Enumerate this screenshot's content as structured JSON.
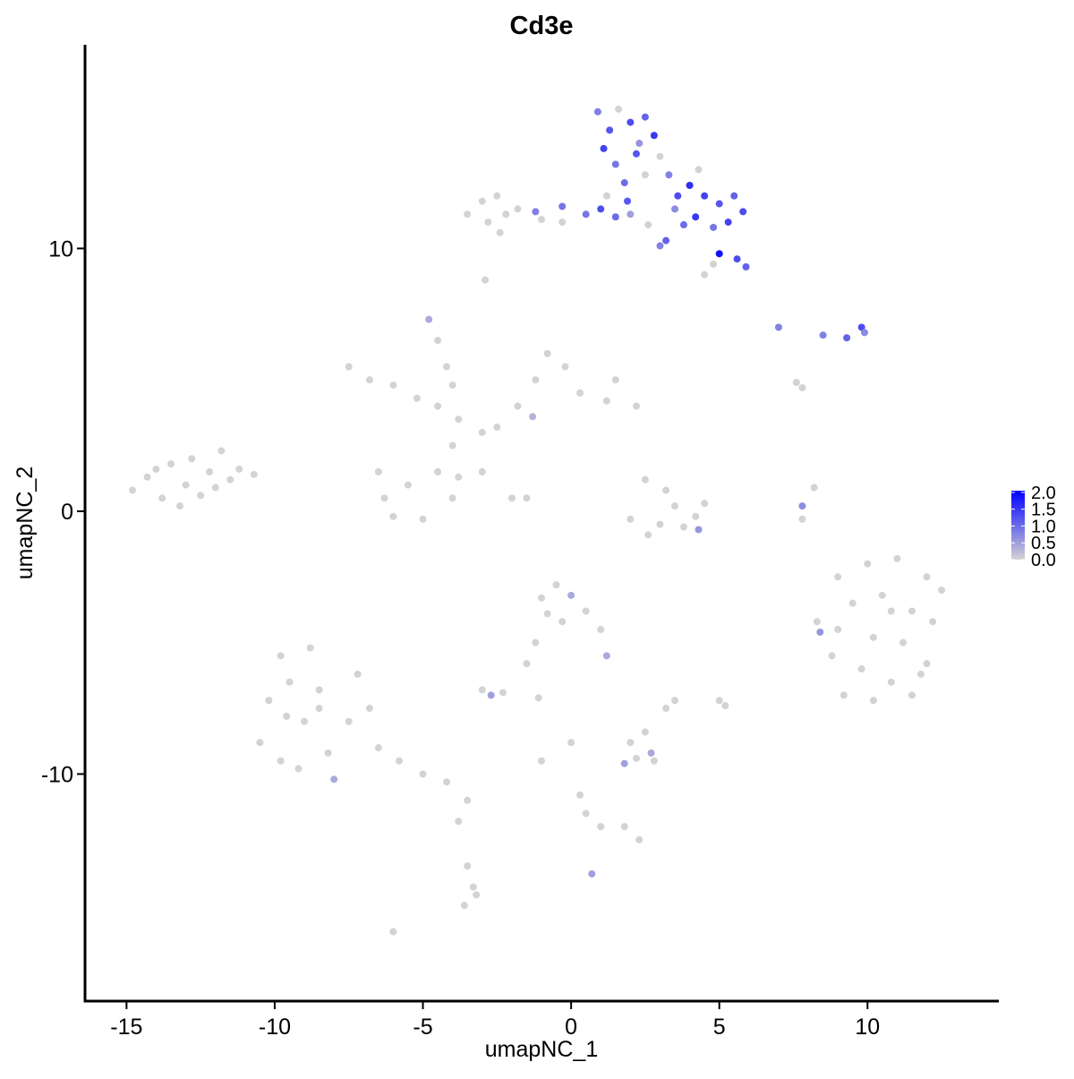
{
  "chart_data": {
    "type": "scatter",
    "title": "Cd3e",
    "x_label": "umapNC_1",
    "y_label": "umapNC_2",
    "xlim": [
      -16.4,
      14.4
    ],
    "ylim": [
      -18.64,
      17.75
    ],
    "xticks": [
      -15,
      -10,
      -5,
      0,
      5,
      10
    ],
    "yticks": [
      -10,
      0,
      10
    ],
    "color_low": "#d3d3d3",
    "color_high": "#0000ff",
    "clim": [
      0,
      2.05
    ],
    "cticks": [
      {
        "value": 0,
        "label": "0.0"
      },
      {
        "value": 0.5,
        "label": "0.5"
      },
      {
        "value": 1,
        "label": "1.0"
      },
      {
        "value": 1.5,
        "label": "1.5"
      },
      {
        "value": 2,
        "label": "2.0"
      }
    ],
    "x": [
      -14.8,
      -14.3,
      -13.8,
      -13.5,
      -13.0,
      -12.8,
      -12.5,
      -12.2,
      -11.8,
      -11.5,
      -11.2,
      -10.7,
      -13.2,
      -14.0,
      -12.0,
      -9.8,
      -9.5,
      -10.2,
      -8.8,
      -8.5,
      -9.0,
      -10.5,
      -9.8,
      -8.2,
      -7.5,
      -8.0,
      -7.2,
      -6.8,
      -9.2,
      -6.5,
      -5.8,
      -5.0,
      -4.2,
      -8.5,
      -9.6,
      -7.5,
      -6.8,
      -6.0,
      -5.2,
      -4.5,
      -3.8,
      -3.0,
      -2.5,
      -1.8,
      -1.2,
      -0.8,
      -0.2,
      0.3,
      1.2,
      2.2,
      1.5,
      -4.5,
      -4.2,
      -4.0,
      -4.0,
      -4.5,
      -5.5,
      -6.3,
      -5.0,
      -4.0,
      -3.8,
      -6.0,
      -3.0,
      -2.0,
      -1.5,
      -1.3,
      -4.8,
      -6.5,
      -3.5,
      -3.0,
      -2.5,
      -2.2,
      -1.8,
      -1.0,
      -0.3,
      -2.8,
      -2.9,
      -2.4,
      0.9,
      1.3,
      1.6,
      2.0,
      2.5,
      2.8,
      1.1,
      1.5,
      2.2,
      3.0,
      3.3,
      1.8,
      2.5,
      3.6,
      4.0,
      4.5,
      5.0,
      5.5,
      5.8,
      4.2,
      3.8,
      4.8,
      5.3,
      5.0,
      5.6,
      4.8,
      5.9,
      4.5,
      3.0,
      3.2,
      1.5,
      1.0,
      0.5,
      -0.3,
      -1.2,
      2.0,
      2.6,
      1.9,
      1.2,
      4.3,
      3.5,
      2.3,
      7.0,
      8.5,
      9.3,
      9.8,
      9.9,
      7.6,
      7.8,
      2.5,
      3.2,
      3.5,
      4.2,
      3.0,
      2.0,
      4.3,
      3.8,
      2.6,
      4.5,
      7.8,
      8.2,
      7.8,
      -1.0,
      -0.5,
      0.0,
      0.5,
      -0.3,
      1.0,
      1.2,
      -1.2,
      -1.5,
      -0.8,
      -3.0,
      -2.7,
      -2.3,
      -1.1,
      2.0,
      2.5,
      2.7,
      2.2,
      1.8,
      2.8,
      3.2,
      0.3,
      0.5,
      1.0,
      1.8,
      2.3,
      0.7,
      -3.8,
      0.0,
      -1.0,
      -3.5,
      -3.3,
      -3.6,
      -3.2,
      -6.0,
      -3.5,
      9.0,
      10.0,
      11.0,
      12.0,
      12.5,
      9.5,
      10.5,
      11.5,
      12.2,
      9.0,
      10.2,
      11.2,
      12.0,
      8.8,
      9.8,
      10.8,
      11.5,
      9.2,
      10.2,
      8.3,
      8.4,
      10.8,
      11.8,
      5.0,
      5.2,
      3.5
    ],
    "y": [
      0.8,
      1.3,
      0.5,
      1.8,
      1.0,
      2.0,
      0.6,
      1.5,
      2.3,
      1.2,
      1.6,
      1.4,
      0.2,
      1.6,
      0.9,
      -5.5,
      -6.5,
      -7.2,
      -5.2,
      -6.8,
      -8.0,
      -8.8,
      -9.5,
      -9.2,
      -8.0,
      -10.2,
      -6.2,
      -7.5,
      -9.8,
      -9.0,
      -9.5,
      -10.0,
      -10.3,
      -7.5,
      -7.8,
      5.5,
      5.0,
      4.8,
      4.3,
      4.0,
      3.5,
      3.0,
      3.2,
      4.0,
      5.0,
      6.0,
      5.5,
      4.5,
      4.2,
      4.0,
      5.0,
      6.5,
      5.5,
      4.8,
      2.5,
      1.5,
      1.0,
      0.5,
      -0.3,
      0.5,
      1.3,
      -0.2,
      1.5,
      0.5,
      0.5,
      3.6,
      7.3,
      1.5,
      11.3,
      11.8,
      12.0,
      11.3,
      11.5,
      11.1,
      11.0,
      11.0,
      8.8,
      10.6,
      15.2,
      14.5,
      15.3,
      14.8,
      15.0,
      14.3,
      13.8,
      13.2,
      13.6,
      13.5,
      12.8,
      12.5,
      12.8,
      12.0,
      12.4,
      12.0,
      11.7,
      12.0,
      11.4,
      11.2,
      10.9,
      10.8,
      11.0,
      9.8,
      9.6,
      9.4,
      9.3,
      9.0,
      10.1,
      10.3,
      11.2,
      11.5,
      11.3,
      11.6,
      11.4,
      11.3,
      10.9,
      11.8,
      12.0,
      13.0,
      11.5,
      14.0,
      7.0,
      6.7,
      6.6,
      7.0,
      6.8,
      4.9,
      4.7,
      1.2,
      0.8,
      0.2,
      -0.2,
      -0.5,
      -0.3,
      -0.7,
      -0.6,
      -0.9,
      0.3,
      0.2,
      0.9,
      -0.3,
      -3.3,
      -2.8,
      -3.2,
      -3.8,
      -4.2,
      -4.5,
      -5.5,
      -5.0,
      -5.8,
      -3.9,
      -6.8,
      -7.0,
      -6.9,
      -7.1,
      -8.8,
      -8.4,
      -9.2,
      -9.4,
      -9.6,
      -9.5,
      -7.5,
      -10.8,
      -11.5,
      -12.0,
      -12.0,
      -12.5,
      -13.8,
      -11.8,
      -8.8,
      -9.5,
      -13.5,
      -14.3,
      -15.0,
      -14.6,
      -16.0,
      -11.0,
      -2.5,
      -2.0,
      -1.8,
      -2.5,
      -3.0,
      -3.5,
      -3.2,
      -3.8,
      -4.2,
      -4.5,
      -4.8,
      -5.0,
      -5.8,
      -5.5,
      -6.0,
      -6.5,
      -7.0,
      -7.0,
      -7.2,
      -4.2,
      -4.6,
      -3.8,
      -6.2,
      -7.2,
      -7.4,
      -7.2
    ],
    "values": [
      0,
      0,
      0,
      0,
      0,
      0,
      0,
      0,
      0,
      0,
      0,
      0,
      0,
      0,
      0,
      0,
      0,
      0,
      0,
      0,
      0,
      0,
      0,
      0,
      0,
      0.4,
      0,
      0,
      0,
      0,
      0,
      0,
      0,
      0,
      0,
      0,
      0,
      0,
      0,
      0,
      0,
      0,
      0,
      0,
      0,
      0,
      0,
      0,
      0,
      0,
      0,
      0,
      0,
      0,
      0,
      0,
      0,
      0,
      0,
      0,
      0,
      0,
      0,
      0,
      0,
      0.3,
      0.4,
      0,
      0,
      0,
      0,
      0,
      0,
      0,
      0,
      0,
      0,
      0,
      0.8,
      1.2,
      0,
      1.3,
      1.1,
      1.5,
      1.4,
      0.9,
      1.2,
      0,
      0.8,
      1.0,
      0,
      1.3,
      1.6,
      1.4,
      1.2,
      1.1,
      1.3,
      1.5,
      1.0,
      0.9,
      1.4,
      1.9,
      1.3,
      0,
      1.1,
      0,
      0.8,
      1.1,
      1.0,
      1.3,
      0.9,
      0.9,
      0.8,
      0.5,
      0,
      1.2,
      0,
      0,
      0.7,
      0.6,
      0.8,
      0.8,
      1.1,
      1.3,
      0.7,
      0,
      0,
      0,
      0,
      0,
      0,
      0,
      0,
      0.6,
      0,
      0,
      0,
      0.7,
      0,
      0,
      0,
      0,
      0.4,
      0,
      0,
      0,
      0.4,
      0,
      0,
      0,
      0,
      0.5,
      0,
      0,
      0,
      0,
      0.4,
      0,
      0.5,
      0,
      0,
      0,
      0,
      0,
      0,
      0,
      0.5,
      0,
      0,
      0,
      0,
      0,
      0,
      0,
      0,
      0,
      0,
      0,
      0,
      0,
      0,
      0,
      0,
      0,
      0,
      0,
      0,
      0,
      0,
      0,
      0,
      0,
      0,
      0,
      0,
      0,
      0.6,
      0,
      0,
      0,
      0,
      0
    ]
  }
}
